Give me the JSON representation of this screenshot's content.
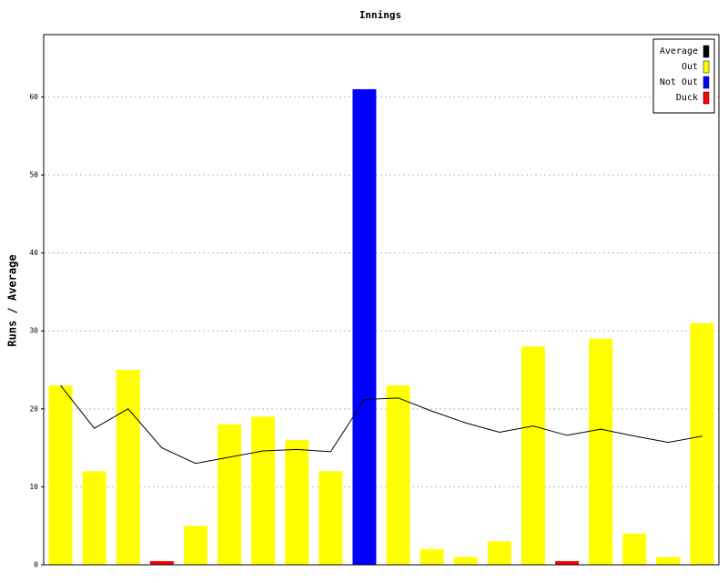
{
  "chart_data": {
    "type": "bar",
    "title": "Innings",
    "y_label": "Runs / Average",
    "ylim": [
      0,
      68
    ],
    "yticks": [
      0,
      10,
      20,
      30,
      40,
      50,
      60
    ],
    "grid": true,
    "series": [
      {
        "name": "Average",
        "color": "#000000",
        "kind": "line",
        "values": [
          23,
          17.5,
          20,
          15,
          13,
          13.8,
          14.6,
          14.8,
          14.5,
          21.2,
          21.4,
          19.7,
          18.2,
          17,
          17.8,
          16.6,
          17.4,
          16.5,
          15.7,
          16.5
        ]
      },
      {
        "name": "Out",
        "color": "#ffff00",
        "values": [
          23,
          12,
          25,
          null,
          5,
          18,
          19,
          16,
          12,
          null,
          23,
          2,
          1,
          3,
          28,
          null,
          29,
          4,
          1,
          31
        ]
      },
      {
        "name": "Not Out",
        "color": "#0000ff",
        "values": [
          null,
          null,
          null,
          null,
          null,
          null,
          null,
          null,
          null,
          61,
          null,
          null,
          null,
          null,
          null,
          null,
          null,
          null,
          null,
          null
        ]
      },
      {
        "name": "Duck",
        "color": "#ff0000",
        "values": [
          null,
          null,
          null,
          0,
          null,
          null,
          null,
          null,
          null,
          null,
          null,
          null,
          null,
          null,
          null,
          0,
          null,
          null,
          null,
          null
        ]
      }
    ]
  }
}
